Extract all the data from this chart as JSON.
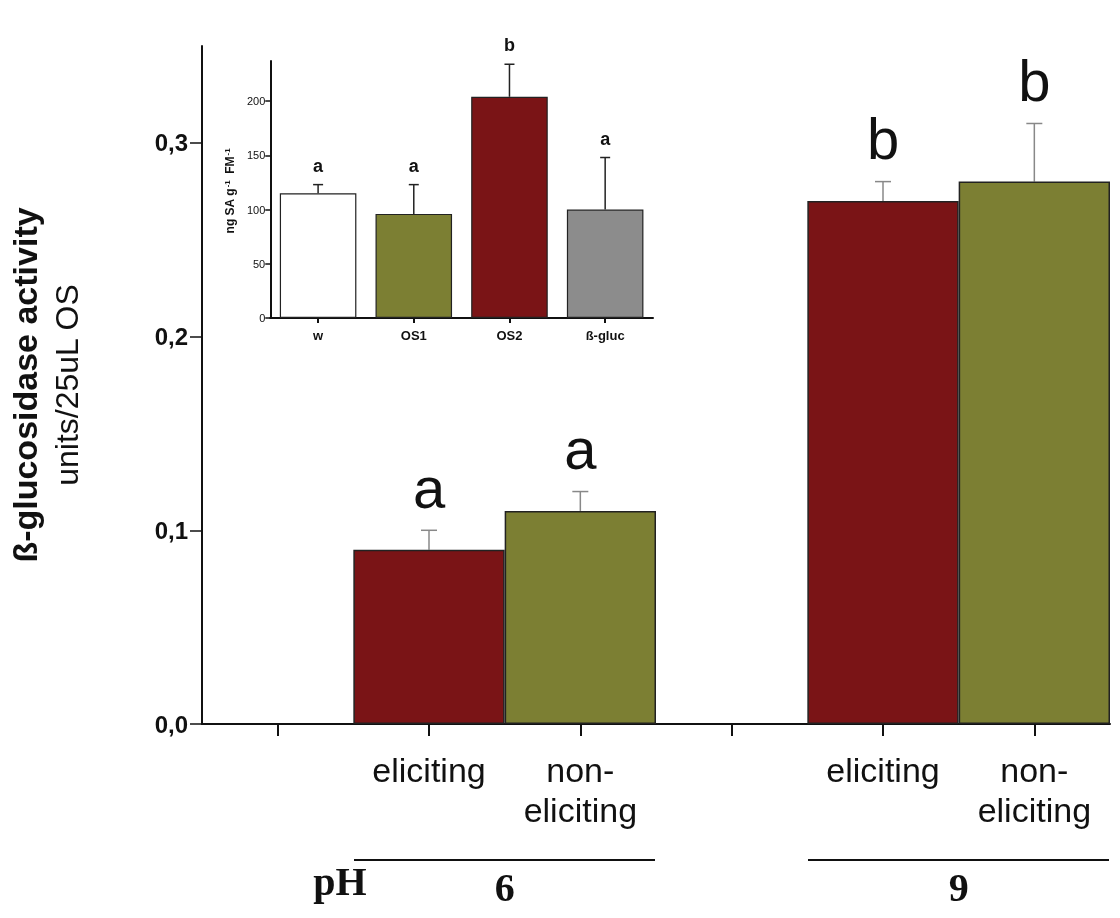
{
  "chart_data": [
    {
      "type": "bar",
      "ylabel": "ß-glucosidase activity\nunits/25uL OS",
      "xlabel": "pH",
      "categories": [
        null,
        "eliciting",
        "non-eliciting",
        null,
        "eliciting",
        "non-eliciting"
      ],
      "values": [
        null,
        0.09,
        0.11,
        null,
        0.27,
        0.28
      ],
      "errors": [
        null,
        0.01,
        0.01,
        null,
        0.01,
        0.03
      ],
      "colors": [
        "#7a1416",
        "#7a1416",
        "#7c7f33",
        "#7a1416",
        "#7a1416",
        "#7c7f33"
      ],
      "ylim": [
        0,
        0.35
      ],
      "yticks": [
        {
          "value": 0,
          "label": "0,0"
        },
        {
          "value": 0.1,
          "label": "0,1"
        },
        {
          "value": 0.2,
          "label": "0,2"
        },
        {
          "value": 0.3,
          "label": "0,3"
        }
      ],
      "annotations": [
        "a",
        "a",
        "b",
        "b",
        "6",
        "9"
      ],
      "grid": false
    },
    {
      "type": "bar",
      "ylabel": "ng SA g$^{-1}$ FM$^{-1}$",
      "categories": [
        "w",
        "OS1",
        "OS2",
        "ß-gluc"
      ],
      "values": [
        115,
        96,
        204,
        100
      ],
      "errors": [
        8,
        27,
        30,
        48
      ],
      "colors": [
        "#ffffff",
        "#7c7f33",
        "#7a1416",
        "#8c8c8c"
      ],
      "ylim": [
        0,
        237
      ],
      "yticks": [
        0,
        50,
        100,
        150,
        200
      ],
      "annotations": [
        "a",
        "a",
        "b",
        "a"
      ],
      "grid": false
    }
  ]
}
